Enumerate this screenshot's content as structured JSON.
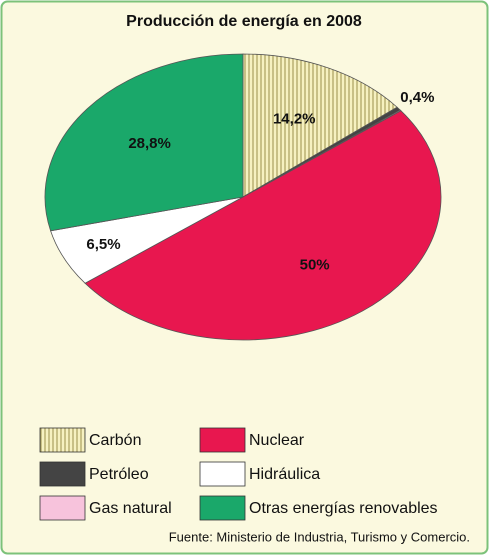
{
  "chart_data": {
    "type": "pie",
    "title": "Producción de energía en 2008",
    "categories": [
      "Carbón",
      "Petróleo",
      "Gas natural",
      "Nuclear",
      "Hidráulica",
      "Otras energías renovables"
    ],
    "values": [
      14.2,
      0.4,
      0.1,
      50,
      6.5,
      28.8
    ],
    "value_labels": [
      "14,2%",
      "0,4%",
      null,
      "50%",
      "6,5%",
      "28,8%"
    ],
    "colors": [
      "#f2ecb0",
      "#444444",
      "#f7c3dc",
      "#e8174f",
      "#ffffff",
      "#1aa86a"
    ],
    "source": "Fuente: Ministerio de Industria, Turismo y Comercio."
  }
}
